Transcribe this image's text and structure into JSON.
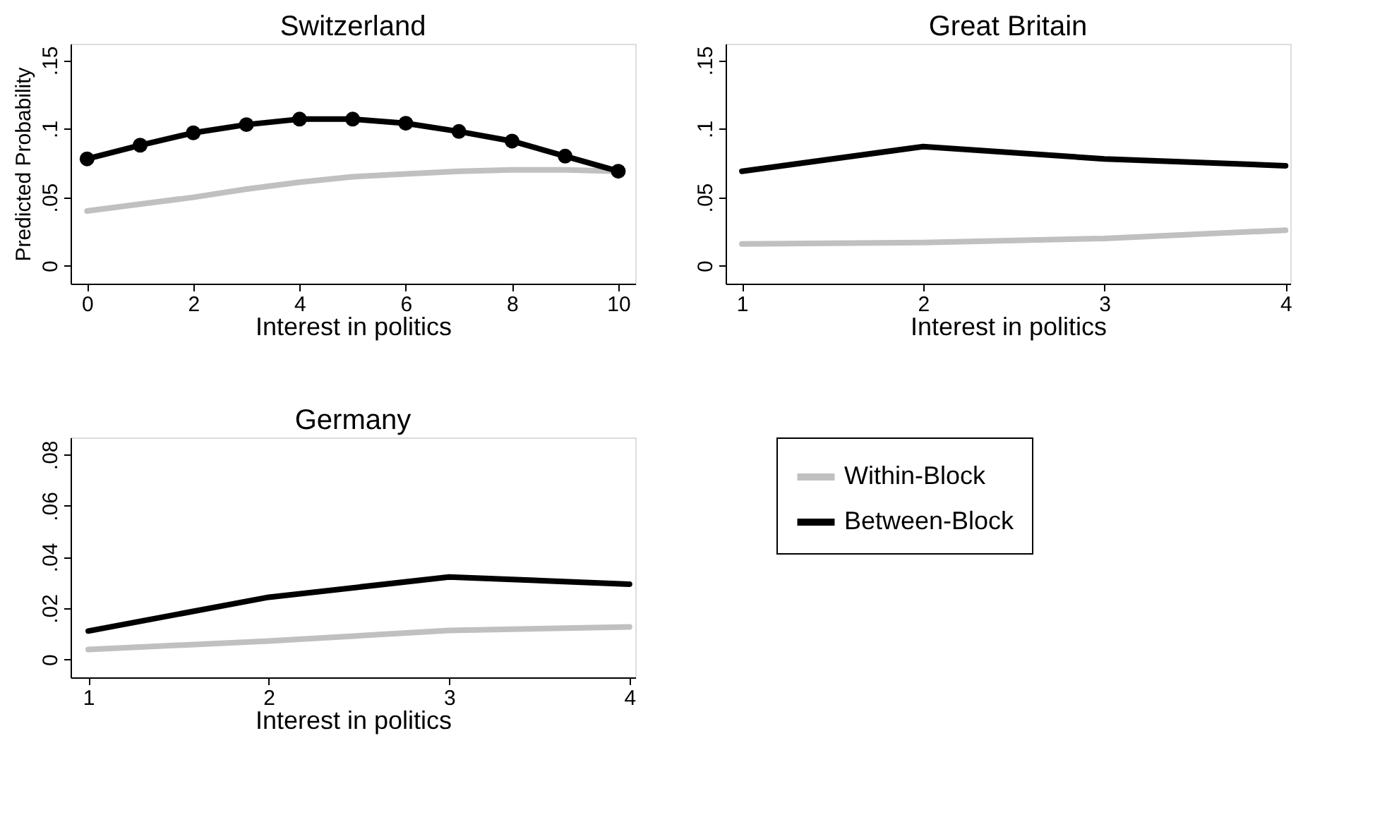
{
  "chart_data": [
    {
      "type": "line",
      "title": "Switzerland",
      "xlabel": "Interest in politics",
      "ylabel": "Predicted Probability",
      "x": [
        0,
        1,
        2,
        3,
        4,
        5,
        6,
        7,
        8,
        9,
        10
      ],
      "xlim": [
        -0.31,
        10.32
      ],
      "xticks": [
        0,
        2,
        4,
        6,
        8,
        10
      ],
      "ylim": [
        -0.013,
        0.162
      ],
      "yticks": [
        0,
        {
          "value": 0.05,
          "label": ".05"
        },
        {
          "value": 0.1,
          "label": ".1"
        },
        {
          "value": 0.15,
          "label": ".15"
        }
      ],
      "grid": false,
      "legend": false,
      "series": [
        {
          "color": "#c0c0c0",
          "marker": "none",
          "values": [
            0.04,
            0.045,
            0.05,
            0.056,
            0.061,
            0.065,
            0.067,
            0.069,
            0.07,
            0.07,
            0.069
          ]
        },
        {
          "color": "#000000",
          "marker": "circle",
          "values": [
            0.078,
            0.088,
            0.097,
            0.103,
            0.107,
            0.107,
            0.104,
            0.098,
            0.091,
            0.08,
            0.069
          ]
        }
      ]
    },
    {
      "type": "line",
      "title": "Great Britain",
      "xlabel": "Interest in politics",
      "x": [
        1,
        2,
        3,
        4
      ],
      "xlim": [
        0.91,
        4.026
      ],
      "xticks": [
        1,
        2,
        3,
        4
      ],
      "ylim": [
        -0.013,
        0.162
      ],
      "yticks": [
        0,
        {
          "value": 0.05,
          "label": ".05"
        },
        {
          "value": 0.1,
          "label": ".1"
        },
        {
          "value": 0.15,
          "label": ".15"
        }
      ],
      "grid": false,
      "legend": false,
      "series": [
        {
          "color": "#c0c0c0",
          "marker": "none",
          "values": [
            0.016,
            0.017,
            0.02,
            0.026
          ]
        },
        {
          "color": "#000000",
          "marker": "none",
          "values": [
            0.069,
            0.087,
            0.078,
            0.073
          ]
        }
      ]
    },
    {
      "type": "line",
      "title": "Germany",
      "xlabel": "Interest in politics",
      "x": [
        1,
        2,
        3,
        4
      ],
      "xlim": [
        0.902,
        4.032
      ],
      "xticks": [
        1,
        2,
        3,
        4
      ],
      "ylim": [
        -0.007,
        0.0867
      ],
      "yticks": [
        0,
        {
          "value": 0.02,
          "label": ".02"
        },
        {
          "value": 0.04,
          "label": ".04"
        },
        {
          "value": 0.06,
          "label": ".06"
        },
        {
          "value": 0.08,
          "label": ".08"
        }
      ],
      "grid": false,
      "legend": "right",
      "series": [
        {
          "name": "Within-Block",
          "color": "#c0c0c0",
          "marker": "none",
          "values": [
            0.0039,
            0.0072,
            0.0113,
            0.0127
          ]
        },
        {
          "name": "Between-Block",
          "color": "#000000",
          "marker": "none",
          "values": [
            0.0111,
            0.0243,
            0.0322,
            0.0294
          ]
        }
      ]
    }
  ]
}
